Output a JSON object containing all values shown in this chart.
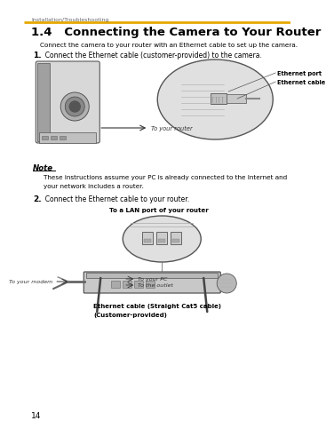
{
  "bg_color": "#ffffff",
  "top_label": "Installation/Troubleshooting",
  "top_bar_color": "#e6a800",
  "title": "1.4   Connecting the Camera to Your Router",
  "subtitle": "Connect the camera to your router with an Ethernet cable to set up the camera.",
  "step1_bold": "1.",
  "step1_text": "  Connect the Ethernet cable (customer-provided) to the camera.",
  "ethernet_port_label": "Ethernet port",
  "ethernet_cable_label": "Ethernet cable",
  "to_router_label": "To your router",
  "note_title": "Note",
  "note_text1": "These instructions assume your PC is already connected to the Internet and",
  "note_text2": "your network includes a router.",
  "step2_bold": "2.",
  "step2_text": "  Connect the Ethernet cable to your router.",
  "lan_port_label": "To a LAN port of your router",
  "to_modem_label": "To your modem",
  "to_pc_label": "To your PC",
  "to_outlet_label": "To the outlet",
  "eth_cable_label1": "Ethernet cable (Straight Cat5 cable)",
  "eth_cable_label2": "(Customer-provided)",
  "page_number": "14"
}
